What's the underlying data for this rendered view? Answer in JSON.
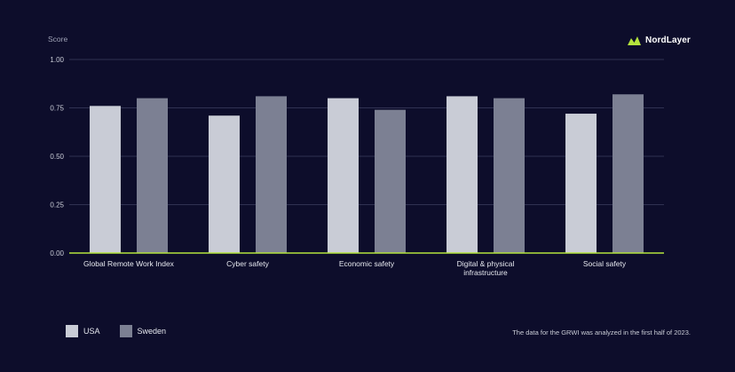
{
  "brand": {
    "name": "NordLayer",
    "logo_icon": "nordlayer-mountain-logo",
    "logo_color": "#b4e33d"
  },
  "footnote": "The data for the GRWI was analyzed in the first half of 2023.",
  "colors": {
    "background": "#0d0d2b",
    "usa": "#c9ccd6",
    "sweden": "#7c8093",
    "baseline": "#b4e33d",
    "grid": "#3c3e60"
  },
  "chart_data": {
    "type": "bar",
    "ylabel": "Score",
    "ylim": [
      0,
      1
    ],
    "yticks": [
      "0.00",
      "0.25",
      "0.50",
      "0.75",
      "1.00"
    ],
    "categories": [
      [
        "Global Remote Work Index"
      ],
      [
        "Cyber safety"
      ],
      [
        "Economic safety"
      ],
      [
        "Digital & physical",
        "infrastructure"
      ],
      [
        "Social safety"
      ]
    ],
    "series": [
      {
        "name": "USA",
        "color": "#c9ccd6",
        "values": [
          0.76,
          0.71,
          0.8,
          0.81,
          0.72
        ]
      },
      {
        "name": "Sweden",
        "color": "#7c8093",
        "values": [
          0.8,
          0.81,
          0.74,
          0.8,
          0.82
        ]
      }
    ],
    "grid": true,
    "legend": "bottom-left"
  }
}
